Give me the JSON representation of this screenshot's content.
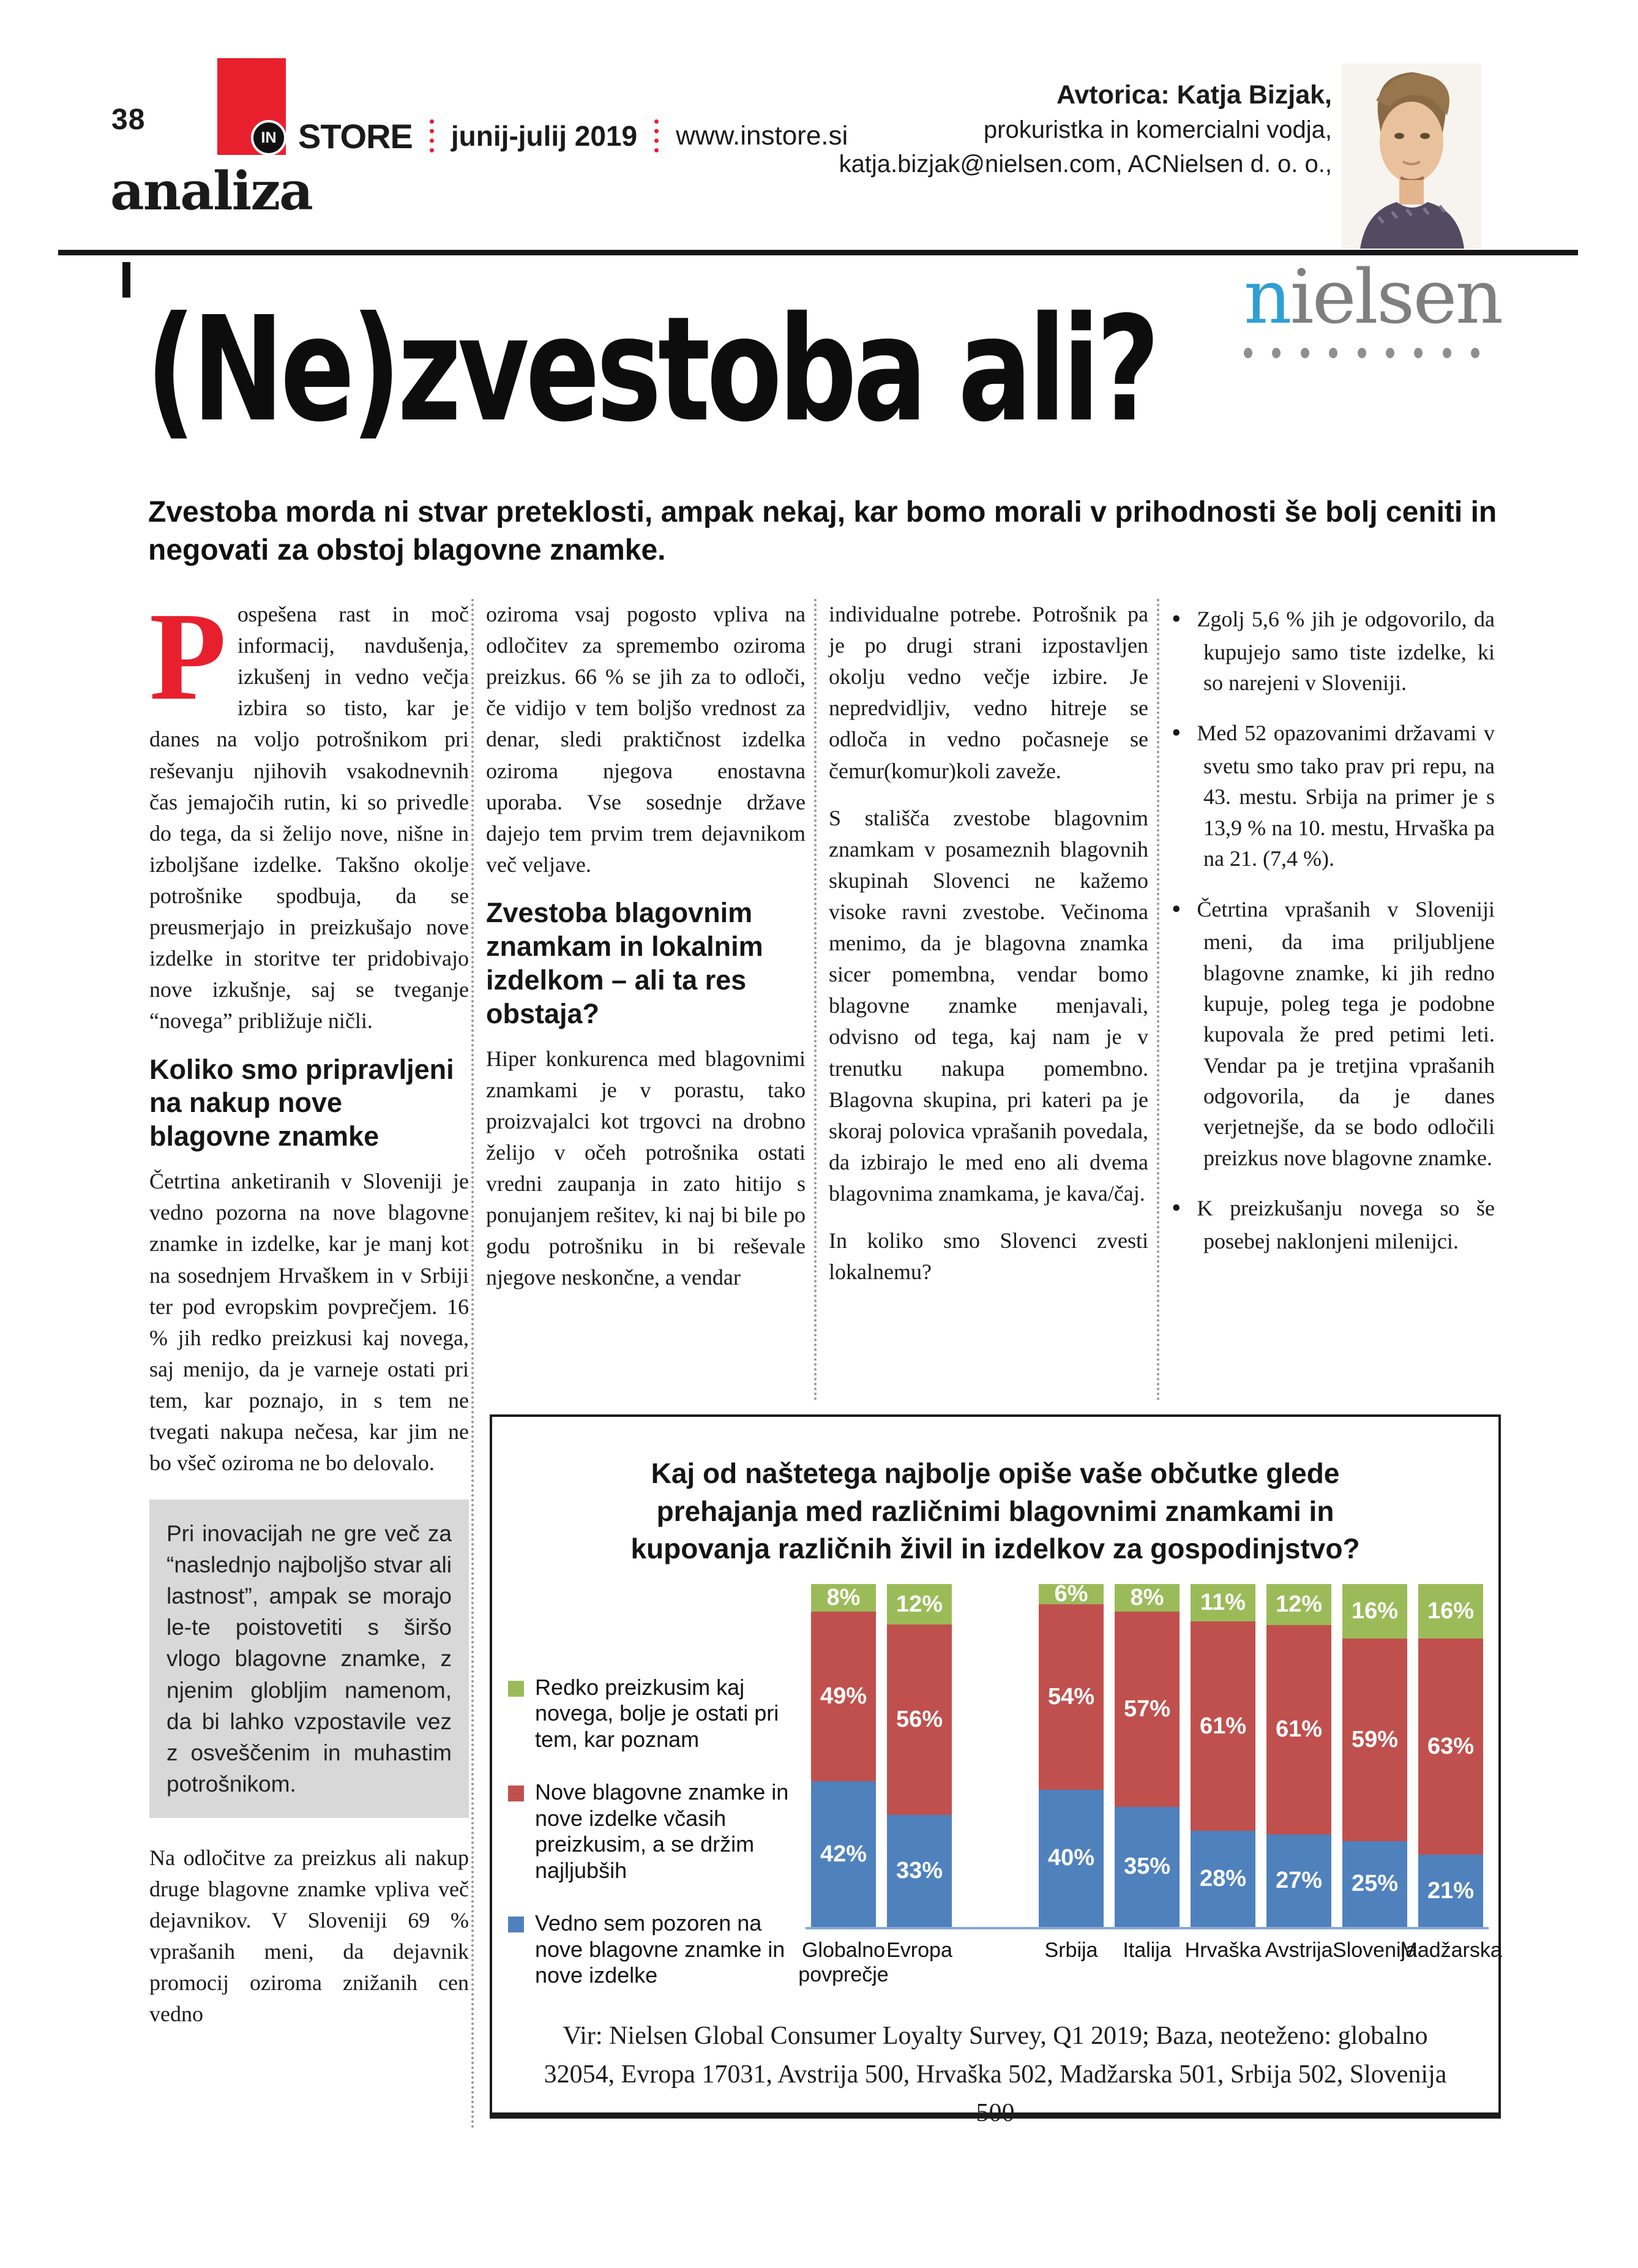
{
  "header": {
    "page_number": "38",
    "logo_in": "IN",
    "logo_store": "STORE",
    "issue": "junij-julij 2019",
    "website": "www.instore.si",
    "section": "analiza",
    "author": {
      "name": "Avtorica: Katja Bizjak,",
      "role": "prokuristka in komercialni vodja,",
      "contact": "katja.bizjak@nielsen.com, ACNielsen d. o. o.,"
    },
    "brand_first": "n",
    "brand_rest": "ielsen"
  },
  "article": {
    "title": "(Ne)zvestoba ali?",
    "lead": "Zvestoba morda ni stvar preteklosti, ampak nekaj, kar bomo morali v prihodnosti še bolj ceniti in negovati za obstoj blagovne znamke.",
    "columns": {
      "col1": {
        "dropcap": "P",
        "para1": "ospešena rast in moč informacij, navdušenja, izkušenj in vedno večja izbira so tisto, kar je danes na voljo potrošnikom pri reševanju njihovih vsakodnevnih čas jemajočih rutin, ki so privedle do tega, da si želijo nove, nišne in izboljšane izdelke. Takšno okolje potrošnike spodbuja, da se preusmerjajo in preizkušajo nove izdelke in storitve ter pridobivajo nove izkušnje, saj se tveganje “novega” približuje ničli.",
        "heading": "Koliko smo pripravljeni na nakup nove blagovne znamke",
        "para2": "Četrtina anketiranih v Sloveniji je vedno pozorna na nove blagovne znamke in izdelke, kar je manj kot na sosednjem Hrvaškem in v Srbiji ter pod evropskim povprečjem. 16 % jih redko preizkusi kaj novega, saj menijo, da je varneje ostati pri tem, kar poznajo, in s tem ne tvegati nakupa nečesa, kar jim ne bo všeč oziroma ne bo delovalo.",
        "highlight": "Pri inovacijah ne gre več za “naslednjo najboljšo stvar ali lastnost”, ampak se morajo le-te poistovetiti s širšo vlogo blagovne znamke, z njenim globljim namenom, da bi lahko vzpostavile vez z osveščenim in muhastim potrošnikom.",
        "para3": "Na odločitve za preizkus ali nakup druge blagovne znamke vpliva več dejavnikov. V Sloveniji 69 % vprašanih meni, da dejavnik promocij oziroma znižanih cen vedno"
      },
      "col2": {
        "para1": "oziroma vsaj pogosto vpliva na odločitev za spremembo oziroma preizkus. 66 % se jih za to odloči, če vidijo v tem boljšo vrednost za denar, sledi praktičnost izdelka oziroma njegova enostavna uporaba. Vse sosednje države dajejo tem prvim trem dejavnikom več veljave.",
        "heading": "Zvestoba blagovnim znamkam in lokalnim izdelkom – ali ta res obstaja?",
        "para2": "Hiper konkurenca med blagovnimi znamkami je v porastu, tako proizvajalci kot trgovci na drobno želijo v očeh potrošnika ostati vredni zaupanja in zato hitijo s ponujanjem rešitev, ki naj bi bile po godu potrošniku in bi reševale njegove neskončne, a vendar"
      },
      "col3": {
        "para1": "individualne potrebe. Potrošnik pa je po drugi strani izpostavljen okolju vedno večje izbire. Je nepredvidljiv, vedno hitreje se odloča in vedno počasneje se čemur(komur)koli zaveže.",
        "para2": "S stališča zvestobe blagovnim znamkam v posameznih blagovnih skupinah Slovenci ne kažemo visoke ravni zvestobe. Večinoma menimo, da je blagovna znamka sicer pomembna, vendar bomo blagovne znamke menjavali, odvisno od tega, kaj nam je v trenutku nakupa pomembno. Blagovna skupina, pri kateri pa je skoraj polovica vprašanih povedala, da izbirajo le med eno ali dvema blagovnima znamkama, je kava/čaj.",
        "para3": "In koliko smo Slovenci zvesti lokalnemu?"
      },
      "col4": {
        "bullets": [
          "Zgolj 5,6 % jih je odgovorilo, da kupujejo samo tiste izdelke, ki so narejeni v Sloveniji.",
          "Med 52 opazovanimi državami v svetu smo tako prav pri repu, na 43. mestu. Srbija na primer je s 13,9 % na 10. mestu, Hrvaška pa na 21. (7,4 %).",
          "Četrtina vprašanih v Sloveniji meni, da ima priljubljene blagovne znamke, ki jih redno kupuje, poleg tega je podobne kupovala že pred petimi leti. Vendar pa je tretjina vprašanih odgovorila, da je danes verjetnejše, da se bodo odločili preizkus nove blagovne znamke.",
          "K preizkušanju novega so še posebej naklonjeni milenijci."
        ]
      }
    }
  },
  "chart_data": {
    "type": "bar",
    "stacked": true,
    "title": "Kaj od naštetega najbolje opiše vaše občutke glede prehajanja med različnimi blagovnimi znamkami in kupovanja različnih živil in izdelkov za gospodinjstvo?",
    "categories": [
      "Globalno povprečje",
      "Evropa",
      "Srbija",
      "Italija",
      "Hrvaška",
      "Avstrija",
      "Slovenija",
      "Madžarska"
    ],
    "gap_after_index": 1,
    "series": [
      {
        "name": "Vedno sem pozoren na nove blagovne znamke in nove izdelke",
        "color": "#4f81bd",
        "values": [
          42,
          33,
          40,
          35,
          28,
          27,
          25,
          21
        ]
      },
      {
        "name": "Nove blagovne znamke in nove izdelke včasih preizkusim, a se držim najljubših",
        "color": "#c0504d",
        "values": [
          49,
          56,
          54,
          57,
          61,
          61,
          59,
          63
        ]
      },
      {
        "name": "Redko preizkusim kaj novega, bolje je ostati pri tem, kar poznam",
        "color": "#9bbb59",
        "values": [
          8,
          12,
          6,
          8,
          11,
          12,
          16,
          16
        ]
      }
    ],
    "value_suffix": "%",
    "legend_position": "left",
    "axis_color": "#88a9d4",
    "ylim": [
      0,
      100
    ],
    "grid": false,
    "source": "Vir: Nielsen Global Consumer Loyalty Survey, Q1 2019; Baza, neoteženo: globalno 32054, Evropa 17031, Avstrija 500, Hrvaška 502, Madžarska 501, Srbija 502, Slovenija 500"
  }
}
